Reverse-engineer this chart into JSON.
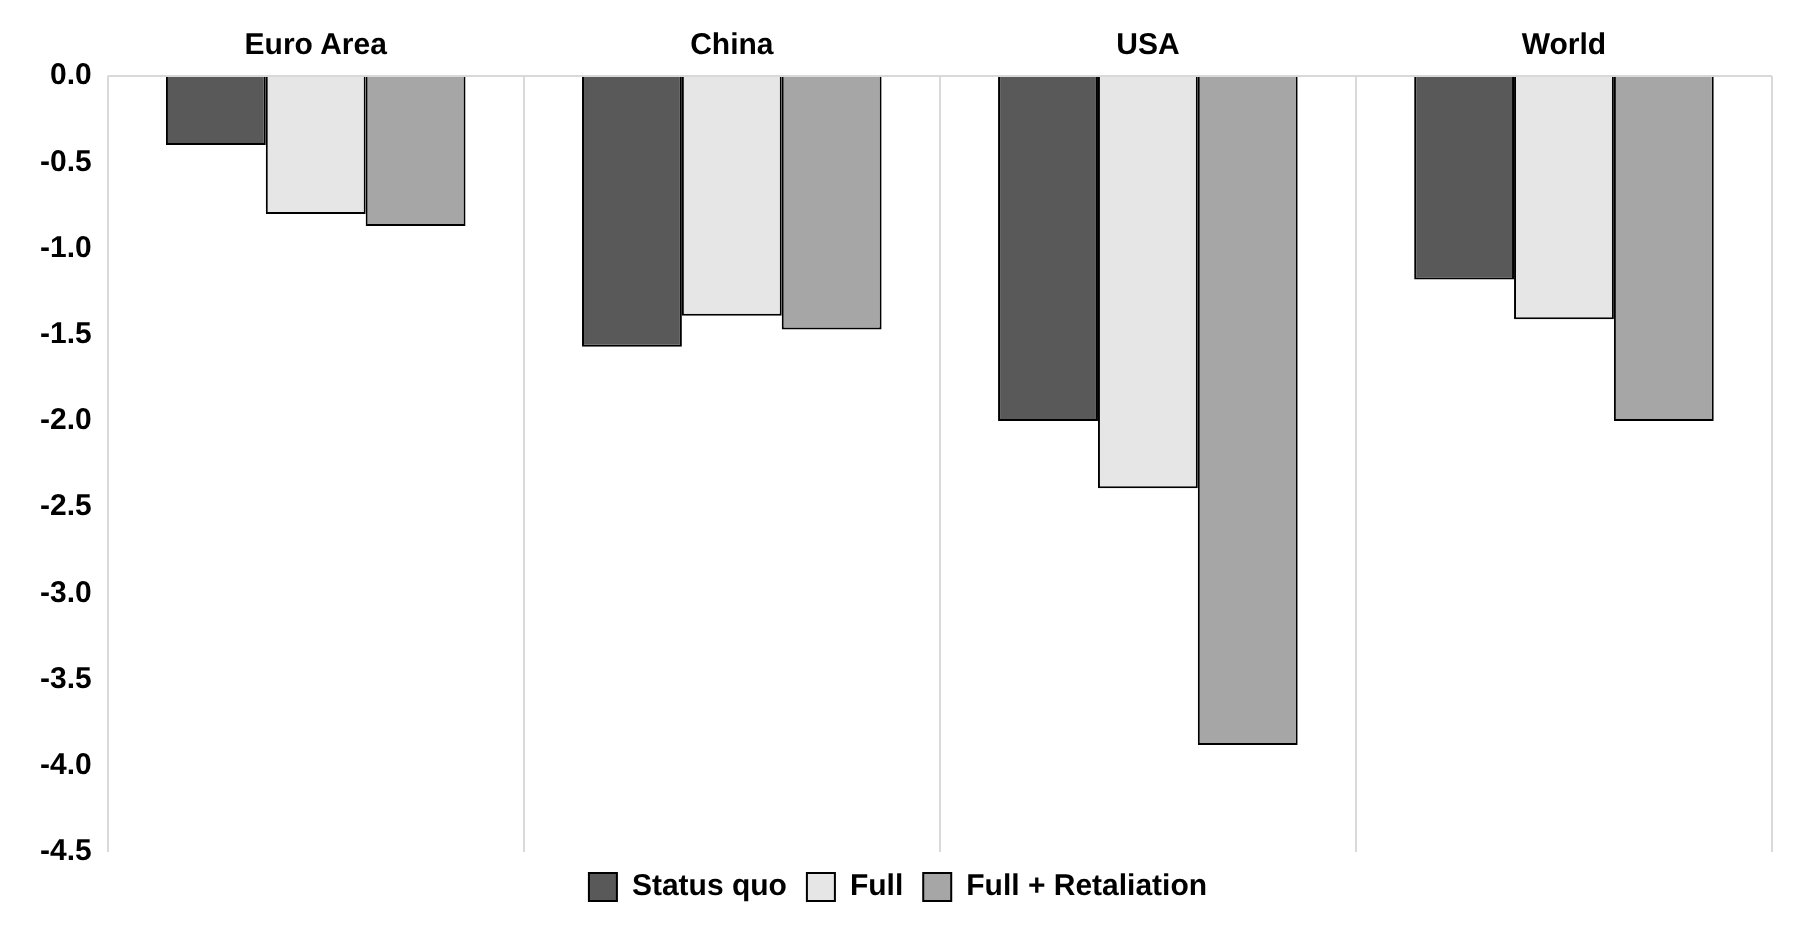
{
  "chart_data": {
    "type": "bar",
    "categories": [
      "Euro Area",
      "China",
      "USA",
      "World"
    ],
    "series": [
      {
        "name": "Status quo",
        "color": "#595959",
        "values": [
          -0.4,
          -1.57,
          -2.0,
          -1.18
        ]
      },
      {
        "name": "Full",
        "color": "#e6e6e6",
        "values": [
          -0.8,
          -1.39,
          -2.39,
          -1.41
        ]
      },
      {
        "name": "Full + Retaliation",
        "color": "#a6a6a6",
        "values": [
          -0.87,
          -1.47,
          -3.88,
          -2.0
        ]
      }
    ],
    "ylim": [
      -4.5,
      0
    ],
    "yticks": [
      {
        "value": 0,
        "label": "0.0"
      },
      {
        "value": -0.5,
        "label": "-0.5"
      },
      {
        "value": -1,
        "label": "-1.0"
      },
      {
        "value": -1.5,
        "label": "-1.5"
      },
      {
        "value": -2,
        "label": "-2.0"
      },
      {
        "value": -2.5,
        "label": "-2.5"
      },
      {
        "value": -3,
        "label": "-3.0"
      },
      {
        "value": -3.5,
        "label": "-3.5"
      },
      {
        "value": -4,
        "label": "-4.0"
      },
      {
        "value": -4.5,
        "label": "-4.5"
      }
    ],
    "grid": "x",
    "legend": "bottom"
  }
}
